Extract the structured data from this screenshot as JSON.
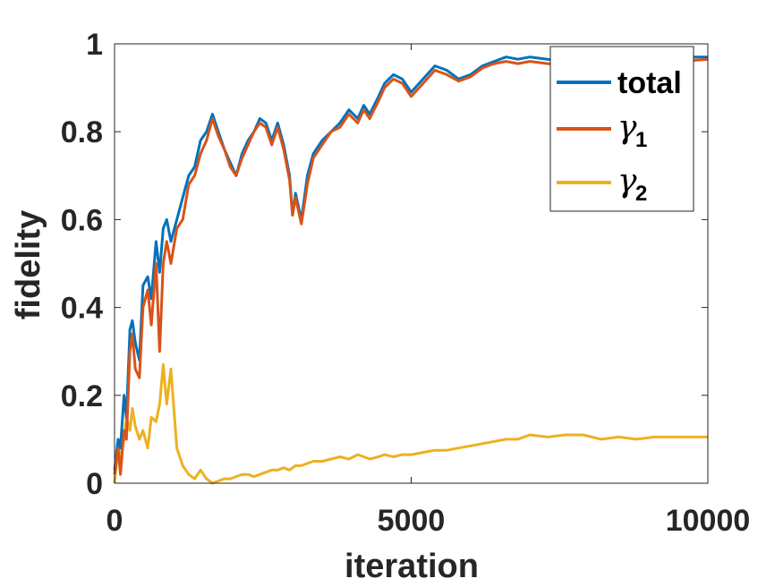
{
  "chart_data": {
    "type": "line",
    "xlabel": "iteration",
    "ylabel": "fidelity",
    "xlim": [
      0,
      10000
    ],
    "ylim": [
      0,
      1
    ],
    "xticks": [
      0,
      5000,
      10000
    ],
    "xtick_labels": [
      "0",
      "5000",
      "10000"
    ],
    "yticks": [
      0,
      0.2,
      0.4,
      0.6,
      0.8,
      1
    ],
    "ytick_labels": [
      "0",
      "0.2",
      "0.4",
      "0.6",
      "0.8",
      "1"
    ],
    "grid": false,
    "legend_position": "top-right",
    "series": [
      {
        "name": "total",
        "color": "#0072BD",
        "x": [
          0,
          60,
          100,
          160,
          200,
          260,
          300,
          350,
          420,
          480,
          560,
          620,
          700,
          760,
          820,
          880,
          950,
          1050,
          1150,
          1250,
          1350,
          1450,
          1550,
          1650,
          1750,
          1850,
          1950,
          2050,
          2150,
          2250,
          2350,
          2450,
          2550,
          2650,
          2750,
          2850,
          2950,
          3000,
          3050,
          3150,
          3250,
          3350,
          3500,
          3650,
          3800,
          3950,
          4100,
          4200,
          4300,
          4450,
          4550,
          4700,
          4850,
          5000,
          5200,
          5400,
          5600,
          5800,
          6000,
          6200,
          6400,
          6600,
          6800,
          7000,
          7300,
          7600,
          7900,
          8200,
          8500,
          8800,
          9100,
          9400,
          9700,
          10000
        ],
        "values": [
          0.03,
          0.1,
          0.08,
          0.2,
          0.15,
          0.35,
          0.37,
          0.32,
          0.28,
          0.45,
          0.47,
          0.42,
          0.55,
          0.48,
          0.58,
          0.6,
          0.55,
          0.6,
          0.65,
          0.7,
          0.72,
          0.78,
          0.8,
          0.84,
          0.8,
          0.76,
          0.73,
          0.7,
          0.75,
          0.78,
          0.8,
          0.83,
          0.82,
          0.78,
          0.82,
          0.77,
          0.7,
          0.61,
          0.66,
          0.6,
          0.7,
          0.75,
          0.78,
          0.8,
          0.82,
          0.85,
          0.83,
          0.86,
          0.84,
          0.88,
          0.91,
          0.93,
          0.92,
          0.89,
          0.92,
          0.95,
          0.94,
          0.92,
          0.93,
          0.95,
          0.96,
          0.97,
          0.965,
          0.97,
          0.965,
          0.96,
          0.965,
          0.965,
          0.97,
          0.965,
          0.97,
          0.968,
          0.97,
          0.97
        ]
      },
      {
        "name": "γ1",
        "color": "#D95319",
        "x": [
          0,
          60,
          100,
          160,
          200,
          260,
          300,
          350,
          420,
          480,
          560,
          620,
          700,
          760,
          820,
          880,
          950,
          1050,
          1150,
          1250,
          1350,
          1450,
          1550,
          1650,
          1750,
          1850,
          1950,
          2050,
          2150,
          2250,
          2350,
          2450,
          2550,
          2650,
          2750,
          2850,
          2950,
          3000,
          3050,
          3150,
          3250,
          3350,
          3500,
          3650,
          3800,
          3950,
          4100,
          4200,
          4300,
          4450,
          4550,
          4700,
          4850,
          5000,
          5200,
          5400,
          5600,
          5800,
          6000,
          6200,
          6400,
          6600,
          6800,
          7000,
          7300,
          7600,
          7900,
          8200,
          8500,
          8800,
          9100,
          9400,
          9700,
          10000
        ],
        "values": [
          0.02,
          0.08,
          0.02,
          0.12,
          0.1,
          0.3,
          0.34,
          0.26,
          0.24,
          0.4,
          0.44,
          0.36,
          0.5,
          0.3,
          0.5,
          0.55,
          0.5,
          0.58,
          0.6,
          0.68,
          0.7,
          0.75,
          0.78,
          0.83,
          0.79,
          0.76,
          0.72,
          0.7,
          0.74,
          0.77,
          0.8,
          0.82,
          0.81,
          0.77,
          0.81,
          0.76,
          0.69,
          0.61,
          0.65,
          0.59,
          0.68,
          0.74,
          0.77,
          0.8,
          0.81,
          0.84,
          0.82,
          0.85,
          0.83,
          0.87,
          0.9,
          0.92,
          0.91,
          0.88,
          0.91,
          0.94,
          0.93,
          0.915,
          0.925,
          0.945,
          0.955,
          0.96,
          0.955,
          0.96,
          0.955,
          0.95,
          0.955,
          0.955,
          0.96,
          0.955,
          0.962,
          0.958,
          0.962,
          0.965
        ]
      },
      {
        "name": "γ2",
        "color": "#EDB120",
        "x": [
          0,
          60,
          100,
          160,
          200,
          260,
          300,
          350,
          420,
          480,
          560,
          620,
          700,
          760,
          820,
          880,
          950,
          1050,
          1150,
          1250,
          1350,
          1450,
          1550,
          1650,
          1750,
          1850,
          1950,
          2050,
          2150,
          2250,
          2350,
          2450,
          2550,
          2650,
          2750,
          2850,
          2950,
          3050,
          3150,
          3250,
          3350,
          3500,
          3650,
          3800,
          3950,
          4100,
          4200,
          4300,
          4450,
          4550,
          4700,
          4850,
          5000,
          5200,
          5400,
          5600,
          5800,
          6000,
          6200,
          6400,
          6600,
          6800,
          7000,
          7300,
          7600,
          7900,
          8200,
          8500,
          8800,
          9100,
          9400,
          9700,
          10000
        ],
        "values": [
          0.0,
          0.08,
          0.06,
          0.1,
          0.15,
          0.12,
          0.17,
          0.13,
          0.1,
          0.12,
          0.08,
          0.15,
          0.14,
          0.18,
          0.27,
          0.18,
          0.26,
          0.08,
          0.04,
          0.02,
          0.01,
          0.03,
          0.01,
          0.0,
          0.005,
          0.01,
          0.01,
          0.015,
          0.02,
          0.02,
          0.015,
          0.02,
          0.025,
          0.03,
          0.03,
          0.035,
          0.03,
          0.04,
          0.04,
          0.045,
          0.05,
          0.05,
          0.055,
          0.06,
          0.055,
          0.065,
          0.06,
          0.055,
          0.06,
          0.065,
          0.06,
          0.065,
          0.065,
          0.07,
          0.075,
          0.075,
          0.08,
          0.085,
          0.09,
          0.095,
          0.1,
          0.1,
          0.11,
          0.105,
          0.11,
          0.11,
          0.1,
          0.105,
          0.1,
          0.105,
          0.105,
          0.105,
          0.105
        ]
      }
    ],
    "legend": [
      {
        "label": "total",
        "base": "total",
        "sub": "",
        "greek": false
      },
      {
        "label": "γ1",
        "base": "γ",
        "sub": "1",
        "greek": true
      },
      {
        "label": "γ2",
        "base": "γ",
        "sub": "2",
        "greek": true
      }
    ]
  }
}
